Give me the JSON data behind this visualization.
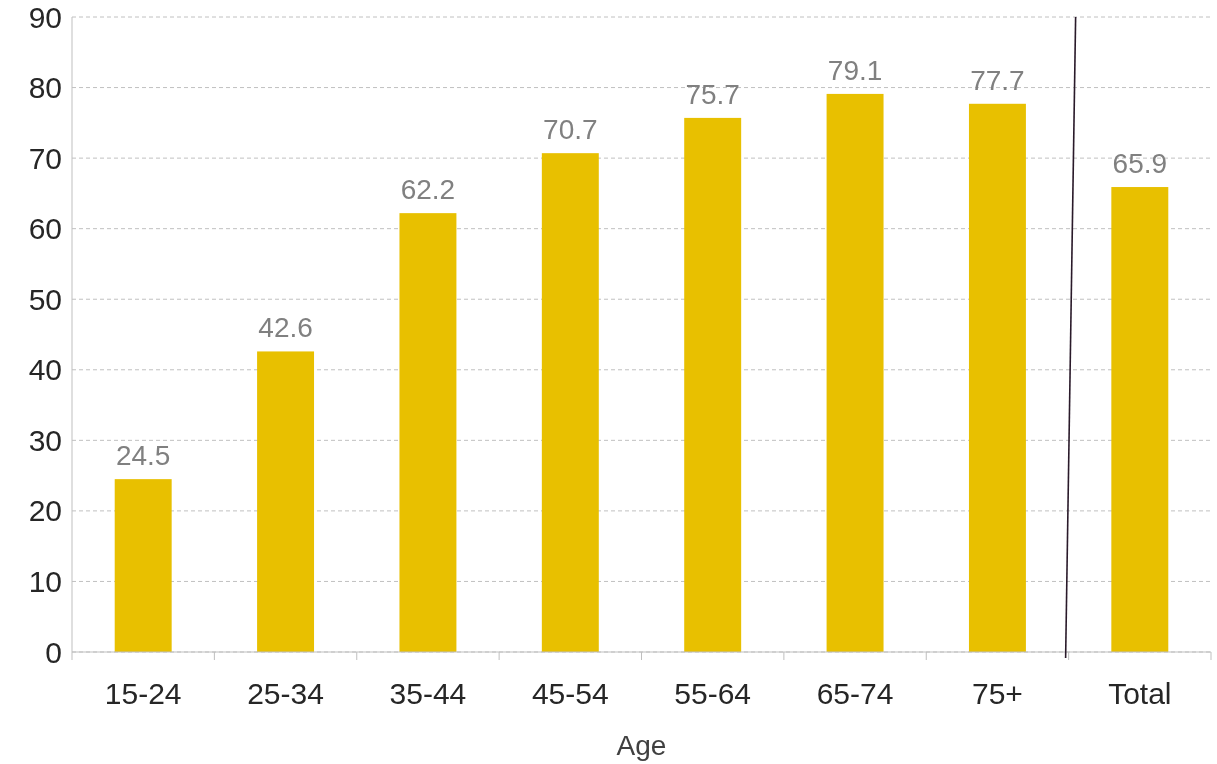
{
  "chart_data": {
    "type": "bar",
    "xlabel": "Age",
    "categories": [
      "15-24",
      "25-34",
      "35-44",
      "45-54",
      "55-64",
      "65-74",
      "75+",
      "Total"
    ],
    "values": [
      24.5,
      42.6,
      62.2,
      70.7,
      75.7,
      79.1,
      77.7,
      65.9
    ],
    "color": "#e8c000",
    "ylim": [
      0,
      90
    ],
    "yticks": [
      0,
      10,
      20,
      30,
      40,
      50,
      60,
      70,
      80,
      90
    ],
    "grid": "y",
    "data_labels": true
  }
}
